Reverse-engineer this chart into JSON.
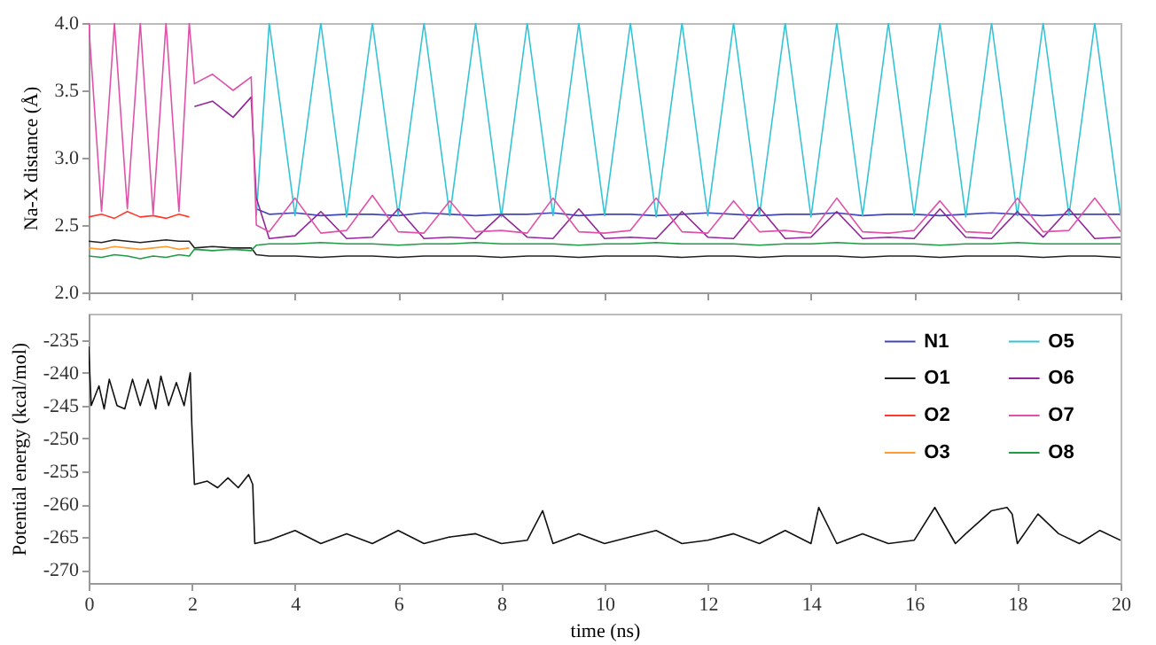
{
  "chart_data": [
    {
      "type": "line",
      "ylabel": "Na-X distance (Å)",
      "tick_labels": "y",
      "legend": "bottom right",
      "line_style": "solid",
      "xlim": [
        0,
        20
      ],
      "xticks": [
        0,
        2,
        4,
        6,
        8,
        10,
        12,
        14,
        16,
        18,
        20
      ],
      "ylim": [
        2,
        4
      ],
      "yticks": [
        {
          "value": 2,
          "label": "2.0"
        },
        {
          "value": 2.5,
          "label": "2.5"
        },
        {
          "value": 3,
          "label": "3.0"
        },
        {
          "value": 3.5,
          "label": "3.5"
        },
        {
          "value": 4,
          "label": "4.0"
        }
      ],
      "x": [
        0,
        0.25,
        0.5,
        0.75,
        1,
        1.25,
        1.5,
        1.75,
        1.95,
        2.05,
        2.4,
        2.8,
        3.15,
        3.25,
        3.5,
        4,
        4.5,
        5,
        5.5,
        6,
        6.5,
        7,
        7.5,
        8,
        8.5,
        9,
        9.5,
        10,
        10.5,
        11,
        11.5,
        12,
        12.5,
        13,
        13.5,
        14,
        14.5,
        15,
        15.5,
        16,
        16.5,
        17,
        17.5,
        18,
        18.5,
        19,
        19.5,
        20
      ],
      "series": [
        {
          "name": "N1",
          "color": "#3f45b8",
          "values": [
            null,
            null,
            null,
            null,
            null,
            null,
            null,
            null,
            null,
            null,
            null,
            null,
            null,
            2.62,
            2.58,
            2.59,
            2.57,
            2.58,
            2.58,
            2.57,
            2.59,
            2.58,
            2.57,
            2.58,
            2.58,
            2.59,
            2.57,
            2.58,
            2.58,
            2.57,
            2.58,
            2.59,
            2.58,
            2.57,
            2.58,
            2.58,
            2.59,
            2.57,
            2.58,
            2.58,
            2.57,
            2.58,
            2.59,
            2.58,
            2.57,
            2.58,
            2.58,
            2.58
          ]
        },
        {
          "name": "O1",
          "color": "#222222",
          "values": [
            2.38,
            2.37,
            2.39,
            2.38,
            2.37,
            2.38,
            2.39,
            2.38,
            2.38,
            2.33,
            2.34,
            2.33,
            2.33,
            2.28,
            2.27,
            2.27,
            2.26,
            2.27,
            2.27,
            2.26,
            2.27,
            2.27,
            2.27,
            2.26,
            2.27,
            2.27,
            2.26,
            2.27,
            2.27,
            2.27,
            2.26,
            2.27,
            2.27,
            2.26,
            2.27,
            2.27,
            2.27,
            2.26,
            2.27,
            2.27,
            2.26,
            2.27,
            2.27,
            2.27,
            2.26,
            2.27,
            2.27,
            2.26
          ]
        },
        {
          "name": "O2",
          "color": "#ff3a2a",
          "values": [
            2.56,
            2.58,
            2.55,
            2.6,
            2.56,
            2.57,
            2.55,
            2.58,
            2.56,
            null,
            null,
            null,
            null,
            null,
            null,
            null,
            null,
            null,
            null,
            null,
            null,
            null,
            null,
            null,
            null,
            null,
            null,
            null,
            null,
            null,
            null,
            null,
            null,
            null,
            null,
            null,
            null,
            null,
            null,
            null,
            null,
            null,
            null,
            null,
            null,
            null,
            null,
            null
          ]
        },
        {
          "name": "O3",
          "color": "#ff9a30",
          "values": [
            2.33,
            2.32,
            2.34,
            2.33,
            2.32,
            2.33,
            2.34,
            2.32,
            2.33,
            null,
            null,
            null,
            null,
            null,
            null,
            null,
            null,
            null,
            null,
            null,
            null,
            null,
            null,
            null,
            null,
            null,
            null,
            null,
            null,
            null,
            null,
            null,
            null,
            null,
            null,
            null,
            null,
            null,
            null,
            null,
            null,
            null,
            null,
            null,
            null,
            null,
            null,
            null
          ]
        },
        {
          "name": "O5",
          "color": "#35c3d8",
          "values": [
            null,
            null,
            null,
            null,
            null,
            null,
            null,
            null,
            null,
            null,
            null,
            null,
            null,
            2.57,
            4,
            2.57,
            4,
            2.56,
            4,
            2.57,
            4,
            2.57,
            4,
            2.56,
            4,
            2.57,
            4,
            2.57,
            4,
            2.56,
            4,
            2.57,
            4,
            2.57,
            4,
            2.56,
            4,
            2.57,
            4,
            2.57,
            4,
            2.56,
            4,
            2.57,
            4,
            2.57,
            4,
            2.57
          ]
        },
        {
          "name": "O6",
          "color": "#92279a",
          "values": [
            null,
            null,
            null,
            null,
            null,
            null,
            null,
            null,
            null,
            3.38,
            3.42,
            3.3,
            3.45,
            2.7,
            2.4,
            2.42,
            2.6,
            2.4,
            2.41,
            2.62,
            2.4,
            2.41,
            2.4,
            2.58,
            2.41,
            2.4,
            2.62,
            2.4,
            2.41,
            2.4,
            2.6,
            2.41,
            2.4,
            2.63,
            2.4,
            2.41,
            2.6,
            2.4,
            2.41,
            2.4,
            2.62,
            2.41,
            2.4,
            2.6,
            2.41,
            2.62,
            2.4,
            2.41
          ]
        },
        {
          "name": "O7",
          "color": "#e052a8",
          "values": [
            4,
            2.6,
            4,
            2.62,
            4,
            2.58,
            4,
            2.6,
            4,
            3.55,
            3.62,
            3.5,
            3.6,
            2.5,
            2.45,
            2.7,
            2.44,
            2.46,
            2.72,
            2.45,
            2.44,
            2.68,
            2.45,
            2.46,
            2.44,
            2.7,
            2.45,
            2.44,
            2.46,
            2.7,
            2.45,
            2.44,
            2.68,
            2.45,
            2.46,
            2.44,
            2.7,
            2.45,
            2.44,
            2.46,
            2.68,
            2.45,
            2.44,
            2.7,
            2.45,
            2.46,
            2.7,
            2.45
          ]
        },
        {
          "name": "O8",
          "color": "#1f9a45",
          "values": [
            2.27,
            2.26,
            2.28,
            2.27,
            2.25,
            2.27,
            2.26,
            2.28,
            2.27,
            2.32,
            2.31,
            2.32,
            2.31,
            2.35,
            2.36,
            2.36,
            2.37,
            2.36,
            2.36,
            2.35,
            2.36,
            2.36,
            2.37,
            2.36,
            2.36,
            2.36,
            2.35,
            2.36,
            2.36,
            2.37,
            2.36,
            2.36,
            2.36,
            2.35,
            2.36,
            2.36,
            2.37,
            2.36,
            2.36,
            2.36,
            2.35,
            2.36,
            2.36,
            2.37,
            2.36,
            2.36,
            2.36,
            2.36
          ]
        }
      ]
    },
    {
      "type": "line",
      "xlabel": "time (ns)",
      "ylabel": "Potential energy (kcal/mol)",
      "line_style": "solid",
      "xlim": [
        0,
        20
      ],
      "xticks": [
        0,
        2,
        4,
        6,
        8,
        10,
        12,
        14,
        16,
        18,
        20
      ],
      "ylim": [
        -272,
        -231
      ],
      "yticks": [
        -270,
        -265,
        -260,
        -255,
        -250,
        -245,
        -240,
        -235
      ],
      "x": [
        0,
        0.05,
        0.2,
        0.3,
        0.4,
        0.55,
        0.7,
        0.85,
        1,
        1.15,
        1.3,
        1.4,
        1.55,
        1.7,
        1.85,
        1.97,
        2.0,
        2.05,
        2.3,
        2.5,
        2.7,
        2.9,
        3.1,
        3.18,
        3.22,
        3.5,
        4,
        4.5,
        5,
        5.5,
        6,
        6.5,
        7,
        7.5,
        8,
        8.5,
        8.8,
        9,
        9.5,
        10,
        10.5,
        11,
        11.5,
        12,
        12.5,
        13,
        13.5,
        14,
        14.15,
        14.5,
        15,
        15.5,
        16,
        16.4,
        16.8,
        17,
        17.5,
        17.8,
        17.9,
        18,
        18.4,
        18.8,
        19.2,
        19.6,
        20
      ],
      "series": [
        {
          "color": "#111111",
          "values": [
            -236,
            -245,
            -242,
            -245.5,
            -241,
            -245,
            -245.5,
            -241,
            -245,
            -241,
            -245.5,
            -240.5,
            -245,
            -241.5,
            -245,
            -240,
            -248,
            -257,
            -256.5,
            -257.5,
            -256,
            -257.5,
            -255.5,
            -257,
            -266,
            -265.5,
            -264,
            -266,
            -264.5,
            -266,
            -264,
            -266,
            -265,
            -264.5,
            -266,
            -265.5,
            -261,
            -266,
            -264.5,
            -266,
            -265,
            -264,
            -266,
            -265.5,
            -264.5,
            -266,
            -264,
            -266,
            -260.5,
            -266,
            -264.5,
            -266,
            -265.5,
            -260.5,
            -266,
            -264.5,
            -261,
            -260.5,
            -261.5,
            -266,
            -261.5,
            -264.5,
            -266,
            -264,
            -265.5
          ]
        }
      ]
    }
  ]
}
